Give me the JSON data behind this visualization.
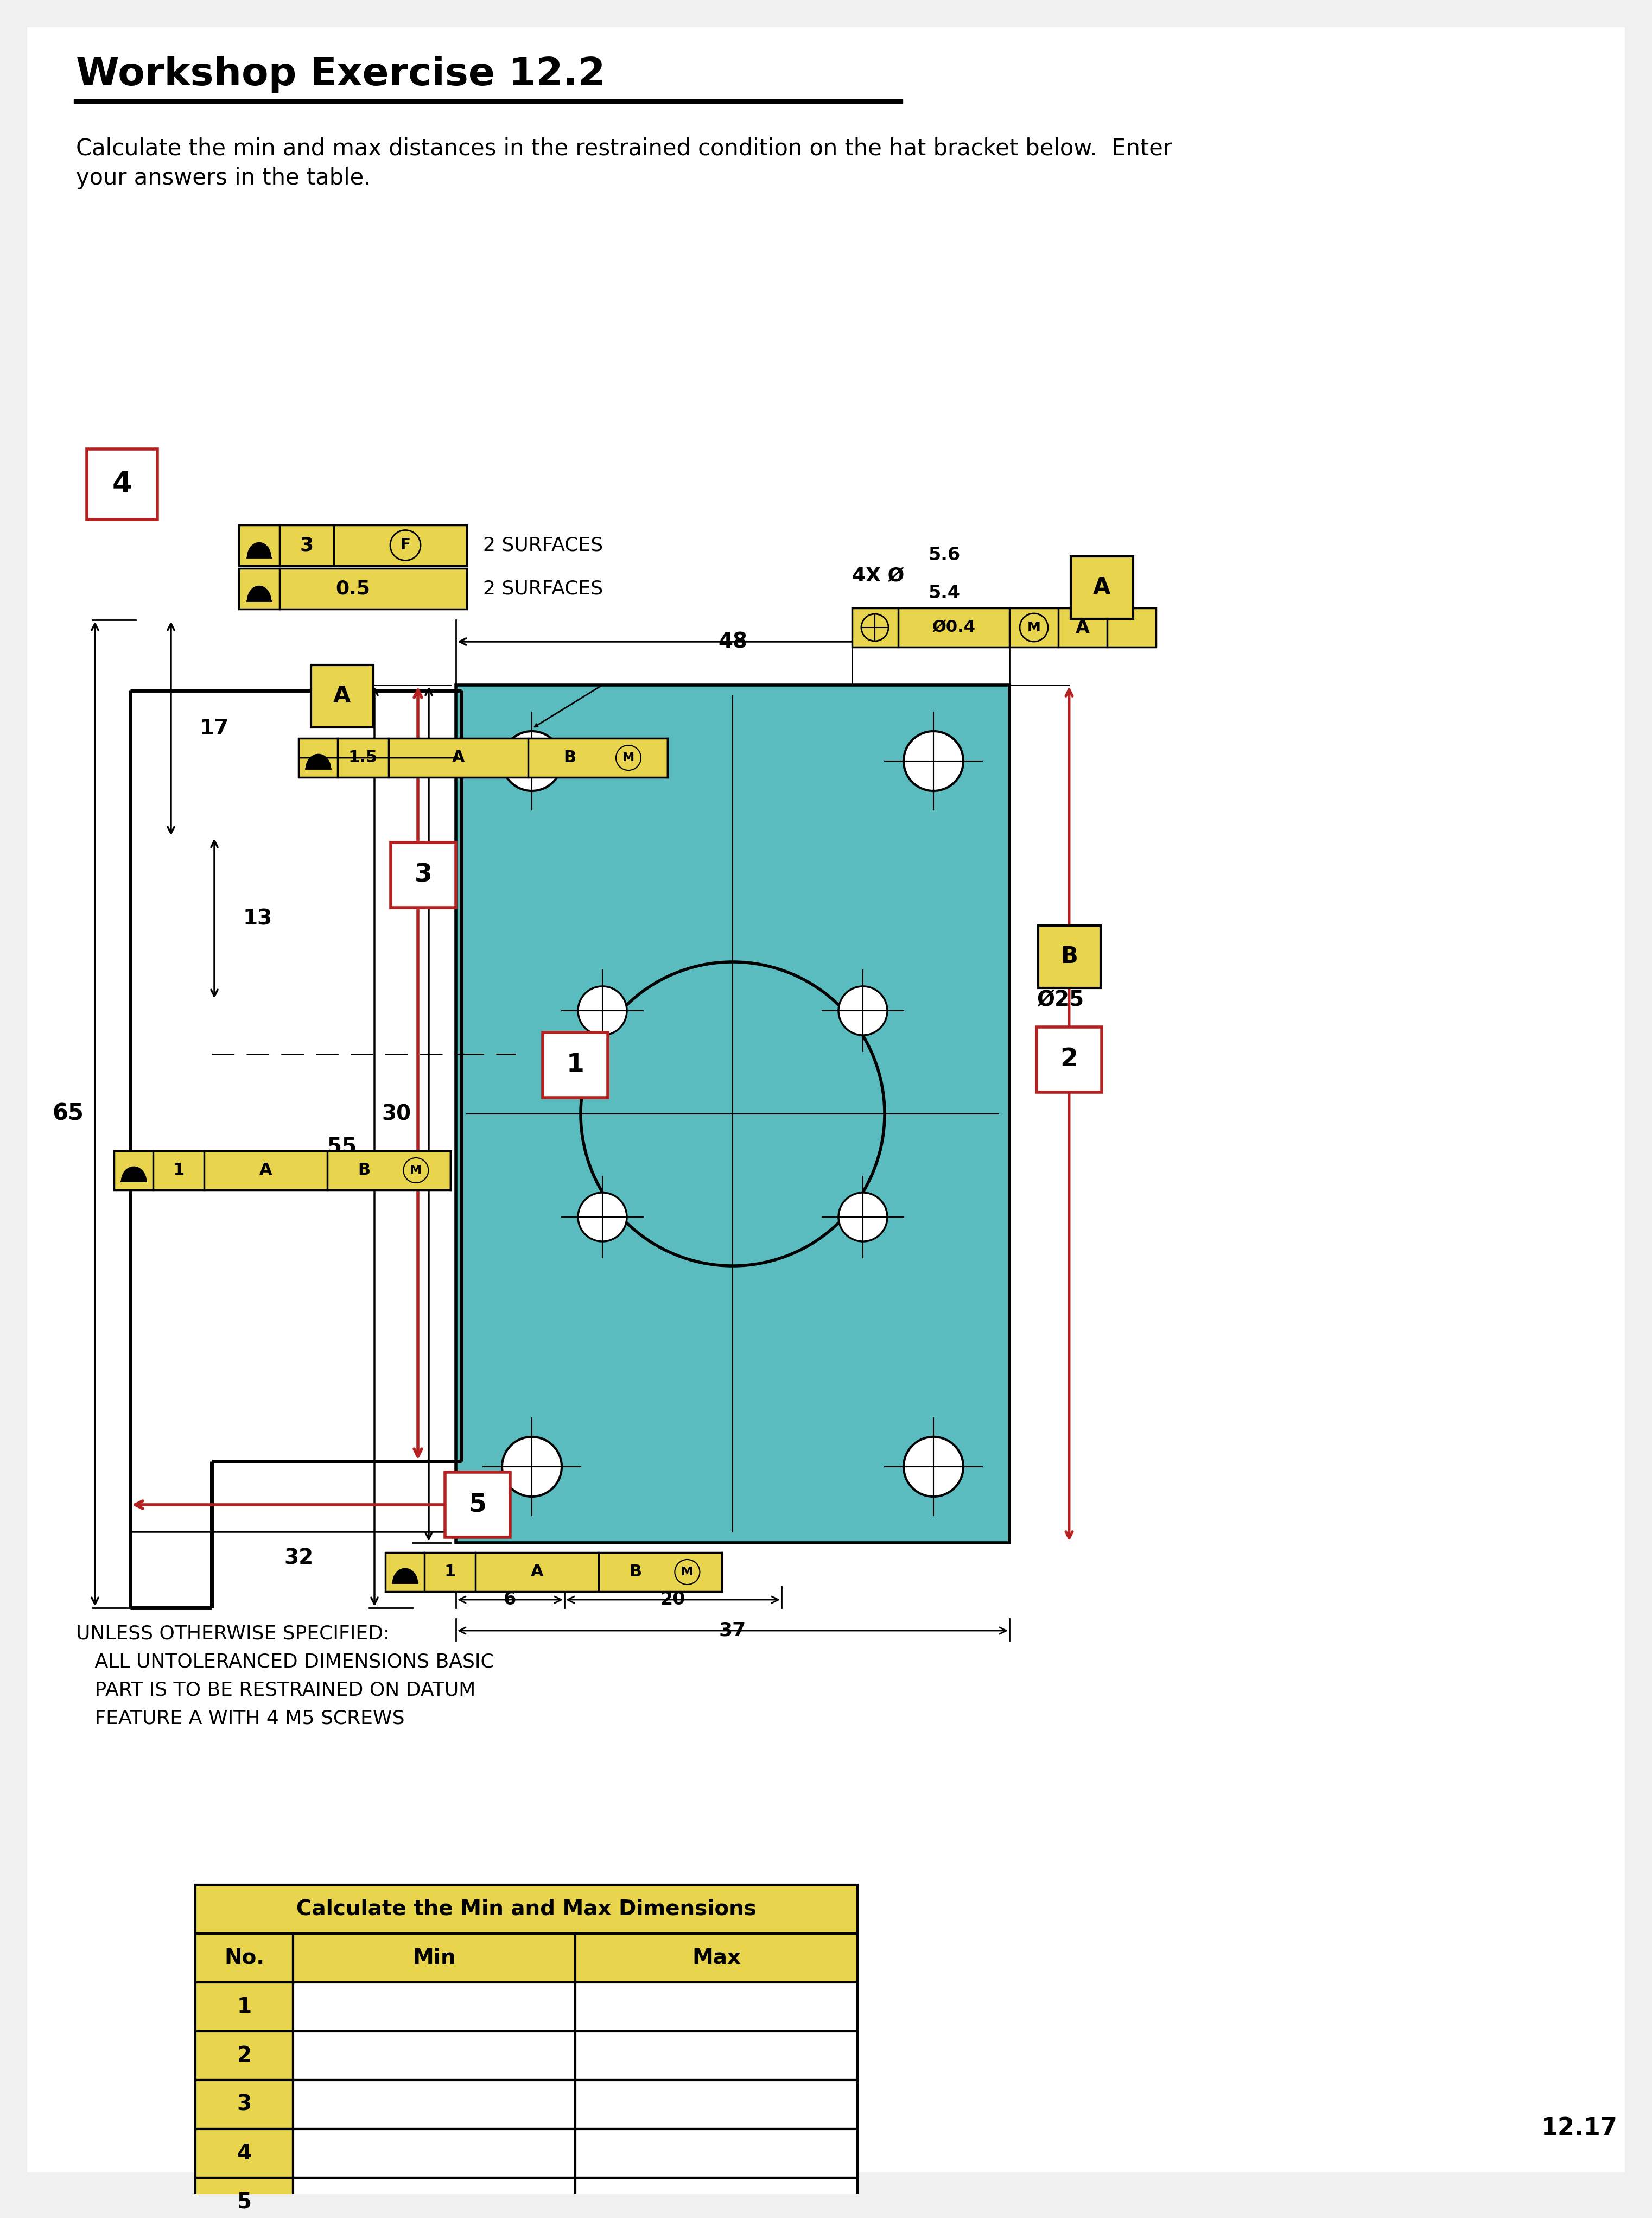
{
  "title": "Workshop Exercise 12.2",
  "subtitle_line1": "Calculate the min and max distances in the restrained condition on the hat bracket below.  Enter",
  "subtitle_line2": "your answers in the table.",
  "yellow": "#e8d44d",
  "cyan": "#5bbcbf",
  "red_dim": "#b52020",
  "red_box": "#b52020",
  "black": "#000000",
  "page_bg": "#f0f0f0",
  "notes": [
    "UNLESS OTHERWISE SPECIFIED:",
    "   ALL UNTOLERANCED DIMENSIONS BASIC",
    "   PART IS TO BE RESTRAINED ON DATUM",
    "   FEATURE A WITH 4 M5 SCREWS"
  ],
  "table_header": "Calculate the Min and Max Dimensions",
  "table_cols": [
    "No.",
    "Min",
    "Max"
  ],
  "table_rows": [
    "1",
    "2",
    "3",
    "4",
    "5"
  ],
  "page_num": "12.17"
}
